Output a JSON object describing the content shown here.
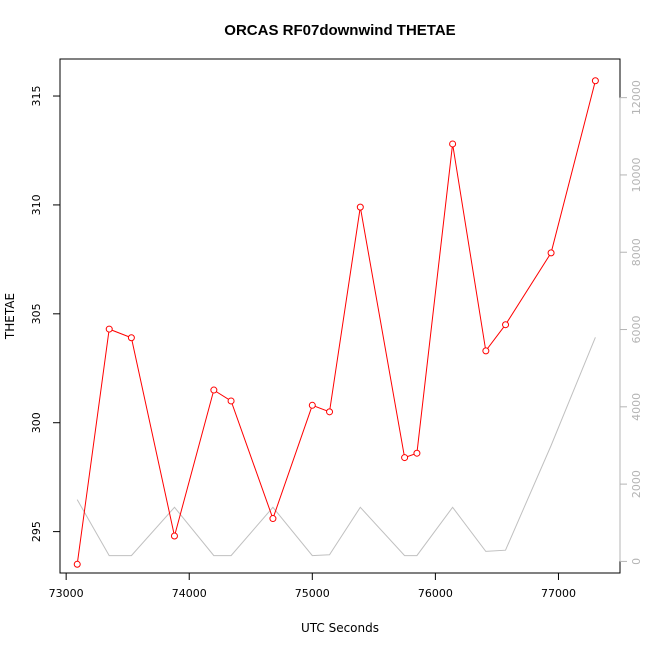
{
  "chart_data": {
    "type": "line",
    "title": "ORCAS RF07downwind THETAE",
    "xlabel": "UTC Seconds",
    "ylabel": "THETAE",
    "xlim": [
      72950,
      77500
    ],
    "ylim": [
      293.1,
      316.7
    ],
    "y2lim": [
      -300,
      13000
    ],
    "x_ticks": [
      73000,
      74000,
      75000,
      76000,
      77000
    ],
    "y_ticks": [
      295,
      300,
      305,
      310,
      315
    ],
    "y2_ticks": [
      0,
      2000,
      4000,
      6000,
      8000,
      10000,
      12000
    ],
    "grid": false,
    "colors": {
      "primary": "#ff0000",
      "secondary": "#c0c0c0"
    },
    "series": [
      {
        "axis": "left",
        "marker": "open-circle",
        "x": [
          73090,
          73350,
          73530,
          73880,
          74200,
          74340,
          74680,
          75000,
          75140,
          75390,
          75750,
          75850,
          76140,
          76410,
          76570,
          76940,
          77300
        ],
        "y": [
          293.5,
          304.3,
          303.9,
          294.8,
          301.5,
          301.0,
          295.6,
          300.8,
          300.5,
          309.9,
          298.4,
          298.6,
          312.8,
          303.3,
          304.5,
          307.8,
          315.7
        ]
      },
      {
        "axis": "right",
        "x": [
          73090,
          73350,
          73530,
          73880,
          74200,
          74340,
          74680,
          75000,
          75140,
          75390,
          75750,
          75850,
          76140,
          76410,
          76570,
          76940,
          77300
        ],
        "y": [
          1600,
          150,
          150,
          1400,
          150,
          150,
          1400,
          150,
          170,
          1400,
          150,
          150,
          1400,
          260,
          290,
          3000,
          5800
        ]
      }
    ]
  }
}
